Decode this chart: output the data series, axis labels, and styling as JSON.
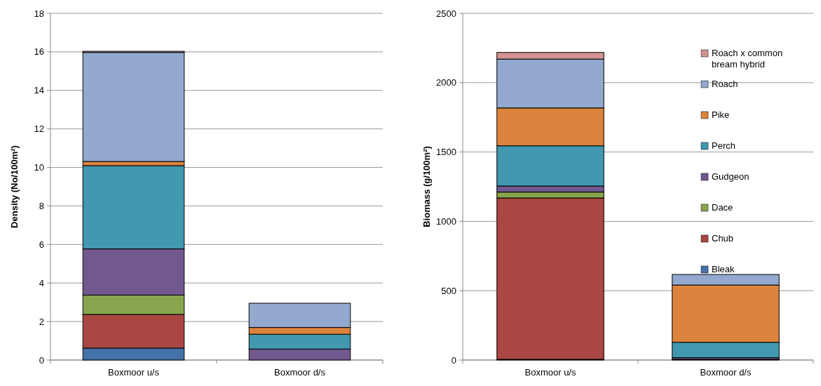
{
  "chart_data": [
    {
      "type": "bar",
      "stacked": true,
      "ylabel": "Density (No/100m²)",
      "categories": [
        "Boxmoor u/s",
        "Boxmoor d/s"
      ],
      "ylim": [
        0,
        18
      ],
      "yticks": [
        0,
        2,
        4,
        6,
        8,
        10,
        12,
        14,
        16,
        18
      ],
      "grid": "y",
      "legend": false,
      "series": [
        {
          "color": "#4572a7",
          "values": [
            0.62,
            0
          ]
        },
        {
          "color": "#aa4643",
          "values": [
            1.75,
            0
          ]
        },
        {
          "color": "#89a54e",
          "values": [
            1.0,
            0
          ]
        },
        {
          "color": "#71588f",
          "values": [
            2.4,
            0.57
          ]
        },
        {
          "color": "#4198af",
          "values": [
            4.32,
            0.77
          ]
        },
        {
          "color": "#db843d",
          "values": [
            0.22,
            0.35
          ]
        },
        {
          "color": "#93a9cf",
          "values": [
            5.66,
            1.26
          ]
        },
        {
          "color": "#d19392",
          "values": [
            0.06,
            0
          ]
        }
      ]
    },
    {
      "type": "bar",
      "stacked": true,
      "ylabel": "Biomass (g/100m²)",
      "categories": [
        "Boxmoor u/s",
        "Boxmoor d/s"
      ],
      "ylim": [
        0,
        2500
      ],
      "yticks": [
        0,
        500,
        1000,
        1500,
        2000,
        2500
      ],
      "grid": "y",
      "legend": "top right",
      "series": [
        {
          "name": "Bleak",
          "color": "#4572a7",
          "values": [
            5,
            5
          ]
        },
        {
          "name": "Chub",
          "color": "#aa4643",
          "values": [
            1164,
            0
          ]
        },
        {
          "name": "Dace",
          "color": "#89a54e",
          "values": [
            42,
            0
          ]
        },
        {
          "name": "Gudgeon",
          "color": "#71588f",
          "values": [
            44,
            12
          ]
        },
        {
          "name": "Perch",
          "color": "#4198af",
          "values": [
            290,
            111
          ]
        },
        {
          "name": "Pike",
          "color": "#db843d",
          "values": [
            273,
            413
          ]
        },
        {
          "name": "Roach",
          "color": "#93a9cf",
          "values": [
            352,
            76
          ]
        },
        {
          "name": "Roach x common bream hybrid",
          "color": "#d19392",
          "values": [
            48,
            0
          ]
        }
      ]
    }
  ]
}
